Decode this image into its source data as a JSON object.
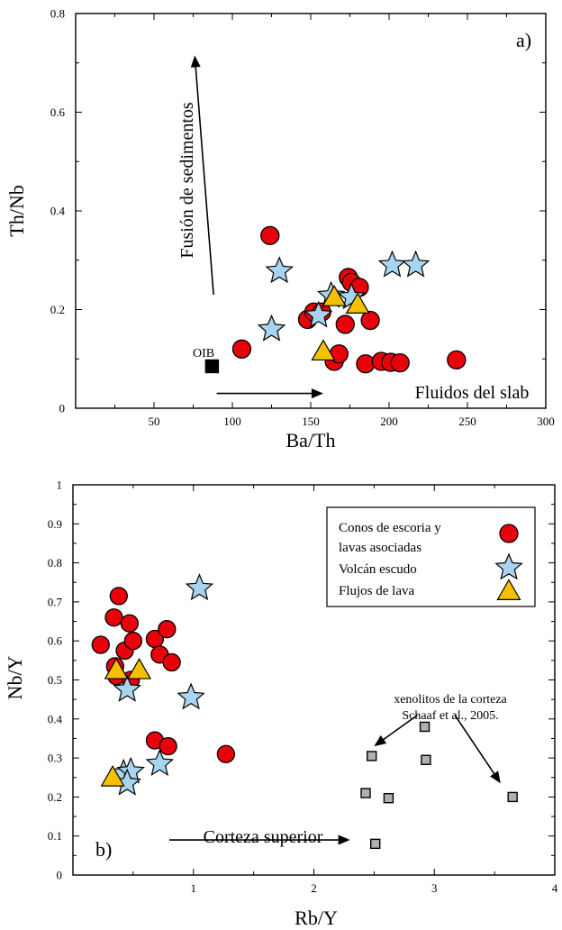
{
  "chart_data": [
    {
      "type": "scatter",
      "panel_label": "a)",
      "xlabel": "Ba/Th",
      "ylabel": "Th/Nb",
      "xlim": [
        0,
        300
      ],
      "ylim": [
        0,
        0.8
      ],
      "xticks": [
        50,
        100,
        150,
        200,
        250,
        300
      ],
      "yticks": [
        0,
        0.2,
        0.4,
        0.6,
        0.8
      ],
      "tick_labels_x": [
        "50",
        "100",
        "150",
        "200",
        "250",
        "300"
      ],
      "tick_labels_y": [
        "0",
        "0.2",
        "0.4",
        "0.6",
        "0.8"
      ],
      "series": [
        {
          "marker": "circle",
          "color": "#e8000b",
          "points": [
            [
              106,
              0.12
            ],
            [
              124,
              0.35
            ],
            [
              148,
              0.18
            ],
            [
              152,
              0.195
            ],
            [
              157,
              0.195
            ],
            [
              165,
              0.095
            ],
            [
              168,
              0.11
            ],
            [
              172,
              0.17
            ],
            [
              174,
              0.265
            ],
            [
              176,
              0.255
            ],
            [
              181,
              0.245
            ],
            [
              185,
              0.09
            ],
            [
              188,
              0.178
            ],
            [
              195,
              0.095
            ],
            [
              201,
              0.093
            ],
            [
              207,
              0.092
            ],
            [
              243,
              0.098
            ]
          ]
        },
        {
          "marker": "star",
          "color": "#a8d4f0",
          "points": [
            [
              125,
              0.16
            ],
            [
              130,
              0.278
            ],
            [
              155,
              0.188
            ],
            [
              163,
              0.228
            ],
            [
              176,
              0.225
            ],
            [
              202,
              0.29
            ],
            [
              217,
              0.29
            ]
          ]
        },
        {
          "marker": "triangle",
          "color": "#f5c000",
          "points": [
            [
              158,
              0.115
            ],
            [
              165,
              0.225
            ],
            [
              180,
              0.21
            ]
          ]
        },
        {
          "marker": "square",
          "color": "#000000",
          "points": [
            [
              87,
              0.085
            ]
          ]
        }
      ],
      "annotations": [
        {
          "text": "OIB",
          "x": 82,
          "y": 0.1
        },
        {
          "text": "Fusión de sedimentos",
          "x": 75,
          "y": 0.45,
          "rotation": -90
        },
        {
          "text": "Fluidos del slab",
          "x": 263,
          "y": 0.03
        }
      ],
      "arrows": [
        {
          "from": [
            88,
            0.23
          ],
          "to": [
            76,
            0.715
          ]
        },
        {
          "from": [
            90,
            0.03
          ],
          "to": [
            158,
            0.03
          ]
        }
      ]
    },
    {
      "type": "scatter",
      "panel_label": "b)",
      "xlabel": "Rb/Y",
      "ylabel": "Nb/Y",
      "xlim": [
        0,
        4
      ],
      "ylim": [
        0,
        1
      ],
      "xticks": [
        1,
        2,
        3,
        4
      ],
      "yticks": [
        0,
        0.1,
        0.2,
        0.3,
        0.4,
        0.5,
        0.6,
        0.7,
        0.8,
        0.9,
        1
      ],
      "tick_labels_x": [
        "1",
        "2",
        "3",
        "4"
      ],
      "tick_labels_y": [
        "0",
        "0.1",
        "0.2",
        "0.3",
        "0.4",
        "0.5",
        "0.6",
        "0.7",
        "0.8",
        "0.9",
        "1"
      ],
      "series": [
        {
          "name": "Conos de escoria y lavas asociadas",
          "marker": "circle",
          "color": "#e8000b",
          "points": [
            [
              0.23,
              0.59
            ],
            [
              0.34,
              0.66
            ],
            [
              0.38,
              0.715
            ],
            [
              0.47,
              0.645
            ],
            [
              0.35,
              0.535
            ],
            [
              0.36,
              0.51
            ],
            [
              0.43,
              0.575
            ],
            [
              0.48,
              0.5
            ],
            [
              0.5,
              0.6
            ],
            [
              0.68,
              0.605
            ],
            [
              0.72,
              0.565
            ],
            [
              0.78,
              0.63
            ],
            [
              0.82,
              0.545
            ],
            [
              0.68,
              0.345
            ],
            [
              0.79,
              0.33
            ],
            [
              1.27,
              0.31
            ]
          ]
        },
        {
          "name": "Volcán escudo",
          "marker": "star",
          "color": "#a8d4f0",
          "points": [
            [
              1.05,
              0.735
            ],
            [
              0.45,
              0.475
            ],
            [
              0.98,
              0.455
            ],
            [
              0.72,
              0.285
            ],
            [
              0.42,
              0.26
            ],
            [
              0.48,
              0.265
            ],
            [
              0.45,
              0.235
            ]
          ]
        },
        {
          "name": "Flujos de lava",
          "marker": "triangle",
          "color": "#f5c000",
          "points": [
            [
              0.33,
              0.25
            ],
            [
              0.36,
              0.525
            ],
            [
              0.55,
              0.525
            ]
          ]
        },
        {
          "marker": "square",
          "color": "#b0b0b0",
          "points": [
            [
              2.43,
              0.21
            ],
            [
              2.48,
              0.305
            ],
            [
              2.51,
              0.08
            ],
            [
              2.62,
              0.197
            ],
            [
              2.92,
              0.38
            ],
            [
              2.93,
              0.295
            ],
            [
              3.65,
              0.2
            ]
          ]
        }
      ],
      "annotations": [
        {
          "text": "xenolitos de la corteza",
          "x": 3.0,
          "y": 0.465
        },
        {
          "text": "Schaaf et al., 2005.",
          "x": 3.0,
          "y": 0.425
        },
        {
          "text": "Corteza superior",
          "x": 1.29,
          "y": 0.12
        }
      ],
      "arrows": [
        {
          "from": [
            2.86,
            0.41
          ],
          "to": [
            2.5,
            0.33
          ]
        },
        {
          "from": [
            3.17,
            0.41
          ],
          "to": [
            3.55,
            0.235
          ]
        },
        {
          "from": [
            0.8,
            0.09
          ],
          "to": [
            2.3,
            0.09
          ]
        }
      ],
      "legend_position": "top-right"
    }
  ]
}
